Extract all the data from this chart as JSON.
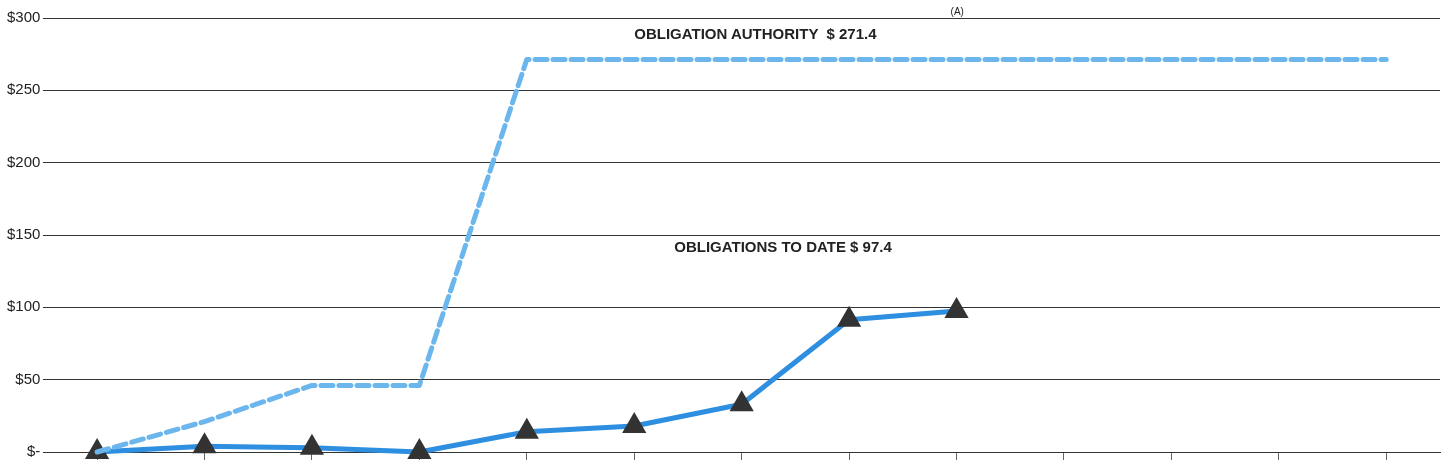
{
  "chart_data": {
    "type": "line",
    "categories": [
      null,
      null,
      null,
      null,
      null,
      null,
      null,
      null,
      null,
      null,
      null,
      null,
      null
    ],
    "series": [
      {
        "name": null,
        "color": "#6cb6ee",
        "line_style": "dashed",
        "marker": "none",
        "values": [
          0,
          21,
          46,
          46,
          271.4,
          271.4,
          271.4,
          271.4,
          271.4,
          271.4,
          271.4,
          271.4,
          271.4
        ]
      },
      {
        "name": null,
        "color": "#2e8ee0",
        "line_style": "solid",
        "marker": "triangle",
        "values": [
          0,
          4,
          3,
          0,
          14,
          18,
          33,
          91.4,
          97.4,
          null,
          null,
          null,
          null
        ]
      }
    ],
    "ylim": [
      0,
      300
    ],
    "yticks": [
      {
        "value": 0,
        "label": "$-"
      },
      {
        "value": 50,
        "label": "$50"
      },
      {
        "value": 100,
        "label": "$100"
      },
      {
        "value": 150,
        "label": "$150"
      },
      {
        "value": 200,
        "label": "$200"
      },
      {
        "value": 250,
        "label": "$250"
      },
      {
        "value": 300,
        "label": "$300"
      }
    ],
    "grid": "y",
    "legend": false,
    "tick_labels": "y",
    "annotations": [
      "OBLIGATION AUTHORITY  $ 271.4",
      "(A)",
      "OBLIGATIONS TO DATE $ 97.4"
    ]
  }
}
